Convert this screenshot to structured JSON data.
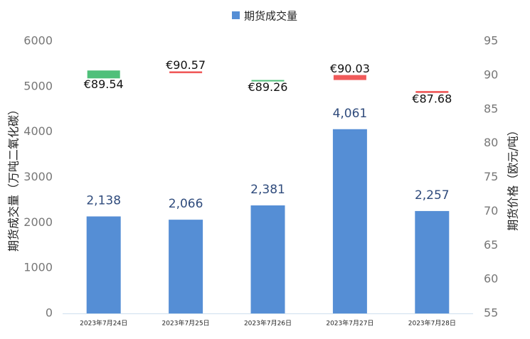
{
  "chart_data": {
    "type": "bar",
    "legend": "期货成交量",
    "y_label": "期货成交量（万吨二氧化碳）",
    "y2_label": "期货价格（欧元/吨）",
    "categories": [
      "2023年7月24日",
      "2023年7月25日",
      "2023年7月26日",
      "2023年7月27日",
      "2023年7月28日"
    ],
    "values": [
      2138,
      2066,
      2381,
      4061,
      2257
    ],
    "value_labels": [
      "2,138",
      "2,066",
      "2,381",
      "4,061",
      "2,257"
    ],
    "color": "#558ed5",
    "ylim": [
      0,
      6000
    ],
    "yticks": [
      0,
      1000,
      2000,
      3000,
      4000,
      5000,
      6000
    ],
    "y2lim": [
      55,
      95
    ],
    "y2ticks": [
      55,
      60,
      65,
      70,
      75,
      80,
      85,
      90,
      95
    ],
    "price": {
      "axis": "y2",
      "open": [
        90.7,
        90.3,
        89.3,
        89.3,
        87.4
      ],
      "close": [
        89.54,
        90.57,
        89.26,
        90.03,
        87.68
      ],
      "value_labels": [
        "€89.54",
        "€90.57",
        "€89.26",
        "€90.03",
        "€87.68"
      ],
      "colors": [
        "#4fc07a",
        "#f05a5a",
        "#4fc07a",
        "#f05a5a",
        "#f05a5a"
      ]
    }
  }
}
